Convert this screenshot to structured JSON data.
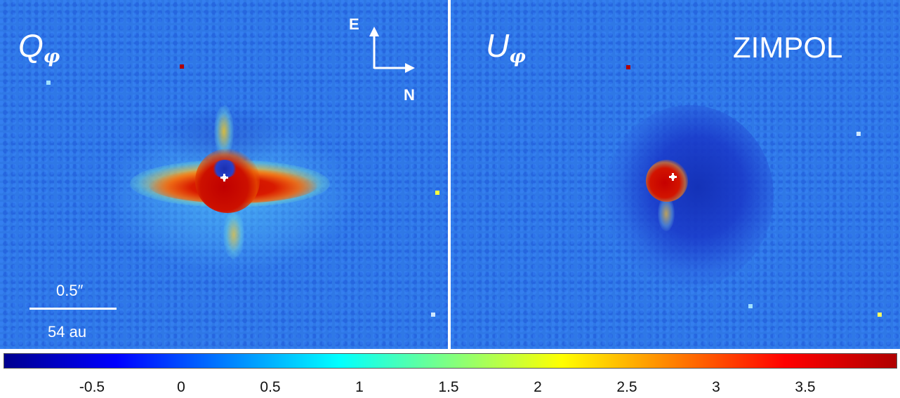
{
  "panels": {
    "left": {
      "label_letter": "Q",
      "label_subscript": "φ"
    },
    "right": {
      "label_letter": "U",
      "label_subscript": "φ"
    }
  },
  "instrument": "ZIMPOL",
  "compass": {
    "east": "E",
    "north": "N"
  },
  "scalebar": {
    "angular": "0.5″",
    "physical": "54 au"
  },
  "colorbar": {
    "tick_labels": [
      "-0.5",
      "0",
      "0.5",
      "1",
      "1.5",
      "2",
      "2.5",
      "3",
      "3.5"
    ],
    "colormap": [
      "#00008f",
      "#0000ff",
      "#0080ff",
      "#00ffff",
      "#80ff80",
      "#ffff00",
      "#ff8000",
      "#ff0000",
      "#b00000"
    ]
  },
  "colors": {
    "background": "#2f78e6",
    "text": "#ffffff"
  }
}
